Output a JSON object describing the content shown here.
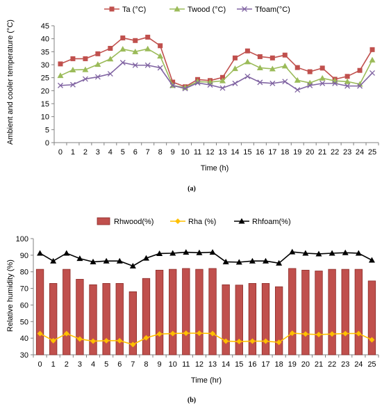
{
  "chart_data": [
    {
      "type": "line",
      "caption": "(a)",
      "xlabel": "Time (h)",
      "ylabel": "Ambient and cooler temperature (°C)",
      "x": [
        0,
        1,
        2,
        3,
        4,
        5,
        6,
        7,
        8,
        9,
        10,
        11,
        12,
        13,
        14,
        15,
        16,
        17,
        18,
        19,
        20,
        21,
        22,
        23,
        24,
        25
      ],
      "ylim": [
        0,
        45
      ],
      "yticks": [
        0,
        5,
        10,
        15,
        20,
        25,
        30,
        35,
        40,
        45
      ],
      "grid": false,
      "legend": "top",
      "series": [
        {
          "name": "Ta (°C)",
          "color": "#c0504d",
          "marker": "square",
          "values": [
            30.3,
            32.3,
            32.3,
            34.2,
            36.3,
            40.3,
            39.3,
            40.6,
            37.3,
            23.3,
            21.5,
            24.3,
            23.9,
            25.1,
            32.6,
            35.3,
            33.1,
            32.6,
            33.7,
            28.9,
            27.3,
            28.7,
            24.4,
            25.5,
            27.8,
            35.8
          ]
        },
        {
          "name": "Twood (°C)",
          "color": "#9bbb59",
          "marker": "triangle",
          "values": [
            25.8,
            28.0,
            28.1,
            30.1,
            32.2,
            36.0,
            35.0,
            36.1,
            33.3,
            22.0,
            21.2,
            23.5,
            23.3,
            23.8,
            28.5,
            31.1,
            28.8,
            28.4,
            29.5,
            24.0,
            23.0,
            24.8,
            23.8,
            23.5,
            22.5,
            31.8
          ]
        },
        {
          "name": "Tfoam(°C)",
          "color": "#8064a2",
          "marker": "x",
          "values": [
            22.0,
            22.3,
            24.5,
            25.3,
            26.5,
            30.8,
            29.8,
            29.8,
            28.8,
            22.0,
            20.8,
            23.0,
            22.2,
            21.0,
            22.8,
            25.5,
            23.2,
            22.8,
            23.5,
            20.3,
            22.0,
            22.8,
            22.8,
            21.8,
            21.8,
            26.8
          ]
        }
      ]
    },
    {
      "type": "bar",
      "caption": "(b)",
      "xlabel": "Time (hr)",
      "ylabel": "Relative humidity (%)",
      "x": [
        0,
        1,
        2,
        3,
        4,
        5,
        6,
        7,
        8,
        9,
        10,
        11,
        12,
        13,
        14,
        15,
        16,
        17,
        18,
        19,
        20,
        21,
        22,
        23,
        24,
        25
      ],
      "ylim": [
        30,
        100
      ],
      "yticks": [
        30,
        40,
        50,
        60,
        70,
        80,
        90,
        100
      ],
      "grid": false,
      "legend": "top",
      "series": [
        {
          "name": "Rhwood(%)",
          "type": "bar",
          "color": "#c0504d",
          "values": [
            81.5,
            73,
            81.5,
            75.5,
            72.2,
            73,
            73,
            68,
            76,
            81,
            81.5,
            82,
            81.5,
            82,
            72.2,
            72,
            73,
            73,
            71,
            82,
            81,
            80.5,
            81.5,
            81.5,
            81.5,
            74.5
          ]
        },
        {
          "name": "Rha (%)",
          "type": "line",
          "color": "#ffc000",
          "marker": "diamond",
          "values": [
            42.8,
            38.5,
            42.8,
            39.5,
            38.2,
            38.5,
            38.5,
            36.2,
            40.2,
            42.5,
            42.8,
            43,
            43,
            42.8,
            38.2,
            38,
            38.2,
            38.2,
            37.5,
            43,
            42.5,
            42.2,
            42.5,
            42.8,
            42.8,
            39
          ]
        },
        {
          "name": "Rhfoam(%)",
          "type": "line",
          "color": "#000000",
          "marker": "triangle",
          "values": [
            91.2,
            86.5,
            91.2,
            88,
            86,
            86.5,
            86.5,
            83.5,
            88.2,
            91,
            91.2,
            91.8,
            91.5,
            91.8,
            86,
            85.8,
            86.5,
            86.5,
            85.2,
            92,
            91.2,
            90.8,
            91.2,
            91.5,
            91.2,
            87
          ]
        }
      ]
    }
  ]
}
